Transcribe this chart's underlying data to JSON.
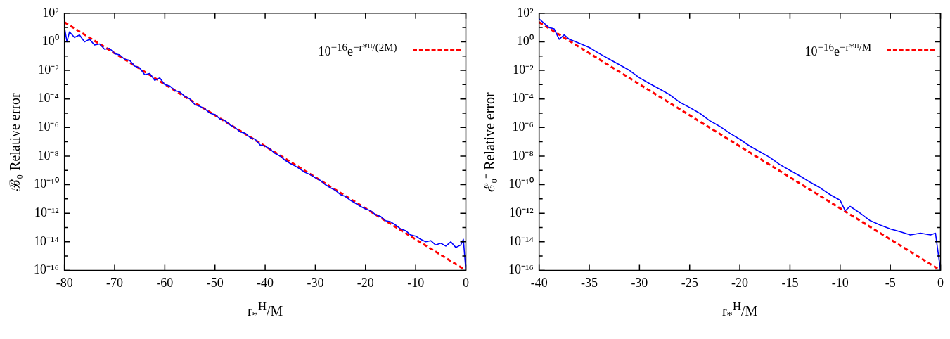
{
  "chart_data": [
    {
      "type": "line",
      "xlabel": "r$_{*}$$^{H}$/M",
      "ylabel": "ℬ₀ Relative error",
      "log": "y",
      "legend": "top right",
      "xlim": [
        -80,
        0
      ],
      "xticks": [
        -80,
        -70,
        -60,
        -50,
        -40,
        -30,
        -20,
        -10,
        0
      ],
      "ylim": [
        1e-16,
        100
      ],
      "yticks": [
        {
          "value": 1e-16,
          "label": "10⁻¹⁶"
        },
        {
          "value": 1e-15,
          "label": null
        },
        {
          "value": 1e-14,
          "label": "10⁻¹⁴"
        },
        {
          "value": 1e-13,
          "label": null
        },
        {
          "value": 1e-12,
          "label": "10⁻¹²"
        },
        {
          "value": 1e-11,
          "label": null
        },
        {
          "value": 1e-10,
          "label": "10⁻¹⁰"
        },
        {
          "value": 1e-09,
          "label": null
        },
        {
          "value": 1e-08,
          "label": "10⁻⁸"
        },
        {
          "value": 1e-07,
          "label": null
        },
        {
          "value": 1e-06,
          "label": "10⁻⁶"
        },
        {
          "value": 1e-05,
          "label": null
        },
        {
          "value": 0.0001,
          "label": "10⁻⁴"
        },
        {
          "value": 0.001,
          "label": null
        },
        {
          "value": 0.01,
          "label": "10⁻²"
        },
        {
          "value": 0.1,
          "label": null
        },
        {
          "value": 1,
          "label": "10⁰"
        },
        {
          "value": 10,
          "label": null
        },
        {
          "value": 100,
          "label": "10²"
        }
      ],
      "series": [
        {
          "color": "#0000ff",
          "line_style": "solid",
          "x": [
            -80,
            -79.5,
            -79,
            -78,
            -77,
            -76,
            -75,
            -74,
            -73,
            -72,
            -71,
            -70,
            -69,
            -68,
            -67,
            -66,
            -65,
            -64,
            -63,
            -62,
            -61,
            -60,
            -59,
            -58,
            -57,
            -56,
            -55,
            -54,
            -53,
            -52,
            -51,
            -50,
            -49,
            -48,
            -47,
            -46,
            -45,
            -44,
            -43,
            -42,
            -41,
            -40,
            -39,
            -38,
            -37,
            -36,
            -35,
            -34,
            -33,
            -32,
            -31,
            -30,
            -29,
            -28,
            -27,
            -26,
            -25,
            -24,
            -23,
            -22,
            -21,
            -20,
            -19,
            -18,
            -17,
            -16,
            -15,
            -14,
            -13,
            -12,
            -11,
            -10,
            -9,
            -8,
            -7,
            -6,
            -5,
            -4,
            -3,
            -2,
            -1,
            -0.5,
            0
          ],
          "values": [
            10,
            1,
            5,
            2,
            3,
            1,
            1.5,
            0.6,
            0.7,
            0.3,
            0.35,
            0.15,
            0.12,
            0.06,
            0.05,
            0.02,
            0.015,
            0.005,
            0.006,
            0.002,
            0.003,
            0.001,
            0.0008,
            0.0004,
            0.0003,
            0.00015,
            0.0001,
            4e-05,
            3e-05,
            2e-05,
            1e-05,
            8e-06,
            4e-06,
            3e-06,
            1.5e-06,
            1e-06,
            5e-07,
            4e-07,
            2e-07,
            1.5e-07,
            6e-08,
            5e-08,
            3e-08,
            1.5e-08,
            1e-08,
            5e-09,
            3e-09,
            2e-09,
            1.2e-09,
            7e-10,
            5e-10,
            3e-10,
            2e-10,
            1e-10,
            6e-11,
            4e-11,
            2e-11,
            1.5e-11,
            8e-12,
            5e-12,
            3e-12,
            2e-12,
            1.5e-12,
            8e-13,
            6e-13,
            3e-13,
            2.5e-13,
            1.5e-13,
            8e-14,
            6e-14,
            3e-14,
            2.5e-14,
            1.5e-14,
            1e-14,
            1.2e-14,
            6e-15,
            8e-15,
            5e-15,
            1e-14,
            4e-15,
            6e-15,
            1.5e-14,
            1e-16
          ]
        },
        {
          "name": "10$^{−16}$e$^{−r*ᴴ/(2M)}$",
          "color": "#ff0000",
          "line_style": "dashed",
          "x": [
            -80,
            0
          ],
          "values": [
            23.5,
            1e-16
          ]
        }
      ]
    },
    {
      "type": "line",
      "xlabel": "r$_{*}$$^{H}$/M",
      "ylabel": "ℰ₀⁻ Relative error",
      "log": "y",
      "legend": "top right",
      "xlim": [
        -40,
        0
      ],
      "xticks": [
        -40,
        -35,
        -30,
        -25,
        -20,
        -15,
        -10,
        -5,
        0
      ],
      "ylim": [
        1e-16,
        100
      ],
      "yticks": [
        {
          "value": 1e-16,
          "label": "10⁻¹⁶"
        },
        {
          "value": 1e-15,
          "label": null
        },
        {
          "value": 1e-14,
          "label": "10⁻¹⁴"
        },
        {
          "value": 1e-13,
          "label": null
        },
        {
          "value": 1e-12,
          "label": "10⁻¹²"
        },
        {
          "value": 1e-11,
          "label": null
        },
        {
          "value": 1e-10,
          "label": "10⁻¹⁰"
        },
        {
          "value": 1e-09,
          "label": null
        },
        {
          "value": 1e-08,
          "label": "10⁻⁸"
        },
        {
          "value": 1e-07,
          "label": null
        },
        {
          "value": 1e-06,
          "label": "10⁻⁶"
        },
        {
          "value": 1e-05,
          "label": null
        },
        {
          "value": 0.0001,
          "label": "10⁻⁴"
        },
        {
          "value": 0.001,
          "label": null
        },
        {
          "value": 0.01,
          "label": "10⁻²"
        },
        {
          "value": 0.1,
          "label": null
        },
        {
          "value": 1,
          "label": "10⁰"
        },
        {
          "value": 10,
          "label": null
        },
        {
          "value": 100,
          "label": "10²"
        }
      ],
      "series": [
        {
          "color": "#0000ff",
          "line_style": "solid",
          "x": [
            -40,
            -39.5,
            -39,
            -38.5,
            -38,
            -37.5,
            -37,
            -36,
            -35,
            -34,
            -33,
            -32,
            -31,
            -30,
            -29,
            -28,
            -27,
            -26,
            -25,
            -24,
            -23,
            -22,
            -21,
            -20,
            -19,
            -18,
            -17,
            -16,
            -15,
            -14,
            -13,
            -12,
            -11,
            -10,
            -9.5,
            -9,
            -8,
            -7,
            -6,
            -5,
            -4,
            -3,
            -2,
            -1,
            -0.5,
            0
          ],
          "values": [
            40,
            20,
            10,
            8,
            1.5,
            3,
            1.5,
            0.8,
            0.4,
            0.15,
            0.06,
            0.025,
            0.01,
            0.003,
            0.0012,
            0.0005,
            0.0002,
            6e-05,
            2.5e-05,
            1e-05,
            3e-06,
            1.2e-06,
            4e-07,
            1.5e-07,
            5e-08,
            2e-08,
            8e-09,
            2.5e-09,
            1e-09,
            4e-10,
            1.5e-10,
            6e-11,
            2e-11,
            8e-12,
            1.5e-12,
            3e-12,
            1e-12,
            3e-13,
            1.5e-13,
            8e-14,
            5e-14,
            3e-14,
            4e-14,
            3e-14,
            4e-14,
            1e-16
          ]
        },
        {
          "name": "10$^{−16}$e$^{−r*ᴴ/M}$",
          "color": "#ff0000",
          "line_style": "dashed",
          "x": [
            -40,
            0
          ],
          "values": [
            23.5,
            1e-16
          ]
        }
      ]
    }
  ]
}
